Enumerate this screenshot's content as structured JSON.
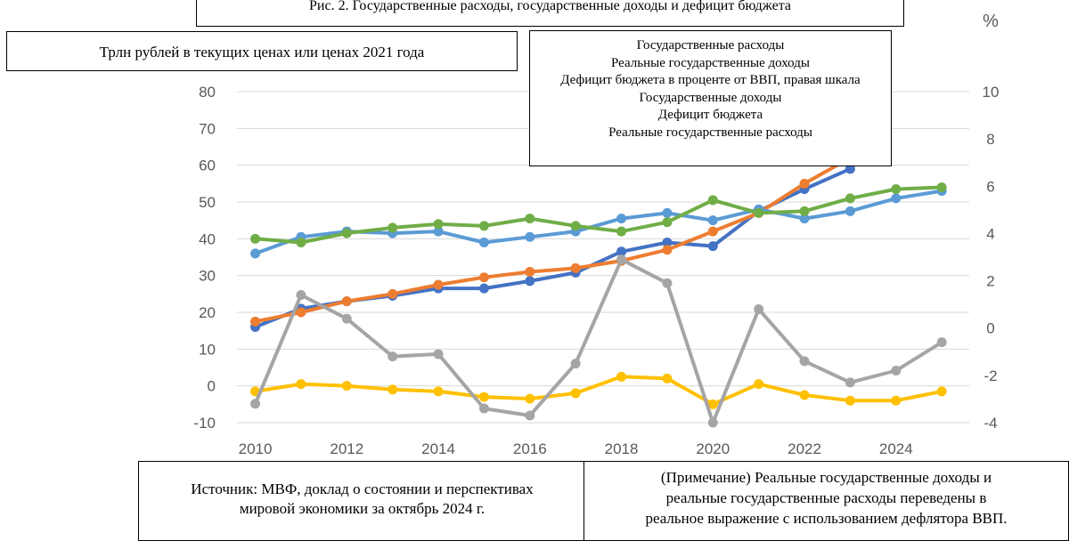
{
  "title": "Рис. 2. Государственные расходы, государственные доходы и дефицит бюджета",
  "units_label": "Трлн рублей в текущих ценах или ценах 2021 года",
  "right_axis_symbol": "%",
  "legend_items": [
    "Государственные расходы",
    "Реальные государственные доходы",
    "Дефицит бюджета в проценте от ВВП, правая шкала",
    "Государственные доходы",
    "Дефицит бюджета",
    "Реальные государственные расходы"
  ],
  "source_lines": [
    "Источник: МВФ, доклад о состоянии и перспективах",
    "мировой экономики за октябрь 2024 г."
  ],
  "note_lines": [
    "(Примечание) Реальные государственные доходы и",
    "реальные государственные расходы переведены в",
    "реальное выражение с использованием дефлятора ВВП."
  ],
  "chart_data": {
    "type": "line",
    "x": [
      2010,
      2011,
      2012,
      2013,
      2014,
      2015,
      2016,
      2017,
      2018,
      2019,
      2020,
      2021,
      2022,
      2023,
      2024,
      2025
    ],
    "x_ticks": [
      "2010",
      "2012",
      "2014",
      "2016",
      "2018",
      "2020",
      "2022",
      "2024"
    ],
    "x_tick_values": [
      2010,
      2012,
      2014,
      2016,
      2018,
      2020,
      2022,
      2024
    ],
    "xlim": [
      2009.6,
      2025.6
    ],
    "ylim_left": [
      -10,
      80
    ],
    "y_ticks_left": [
      "-10",
      "0",
      "10",
      "20",
      "30",
      "40",
      "50",
      "60",
      "70",
      "80"
    ],
    "ylim_right": [
      -4,
      10
    ],
    "y_ticks_right": [
      "-4",
      "-2",
      "0",
      "2",
      "4",
      "6",
      "8",
      "10"
    ],
    "gridlines": true,
    "series": [
      {
        "name": "Государственные расходы",
        "axis": "left",
        "color": "#4472C4",
        "values": [
          16,
          21,
          23,
          24.5,
          26.5,
          26.5,
          28.5,
          30.8,
          36.5,
          39,
          38,
          47.5,
          53.5,
          59,
          null,
          null
        ]
      },
      {
        "name": "Государственные доходы",
        "axis": "left",
        "color": "#ED7D31",
        "values": [
          17.5,
          20,
          23,
          25,
          27.5,
          29.5,
          31,
          32,
          34,
          37,
          42,
          47,
          55,
          62,
          null,
          null
        ]
      },
      {
        "name": "Реальные государственные доходы",
        "axis": "left",
        "color": "#5B9BD5",
        "values": [
          36,
          40.5,
          42,
          41.5,
          42,
          39,
          40.5,
          42,
          45.5,
          47,
          45,
          48,
          45.5,
          47.5,
          51,
          53
        ]
      },
      {
        "name": "Реальные государственные расходы",
        "axis": "left",
        "color": "#70AD47",
        "values": [
          40,
          39,
          41.5,
          43,
          44,
          43.5,
          45.5,
          43.5,
          42,
          44.5,
          50.5,
          47,
          47.5,
          51,
          53.5,
          54
        ]
      },
      {
        "name": "Дефицит бюджета",
        "axis": "left",
        "color": "#FFC000",
        "values": [
          -1.5,
          0.5,
          0,
          -1,
          -1.5,
          -3,
          -3.5,
          -2,
          2.5,
          2,
          -5,
          0.5,
          -2.5,
          -4,
          -4,
          -1.5
        ]
      },
      {
        "name": "Дефицит бюджета в проценте от ВВП, правая шкала",
        "axis": "right",
        "color": "#A5A5A5",
        "values": [
          -3.2,
          1.4,
          0.4,
          -1.2,
          -1.1,
          -3.4,
          -3.7,
          -1.5,
          2.9,
          1.9,
          -4,
          0.8,
          -1.4,
          -2.3,
          -1.8,
          -0.6
        ]
      }
    ]
  }
}
